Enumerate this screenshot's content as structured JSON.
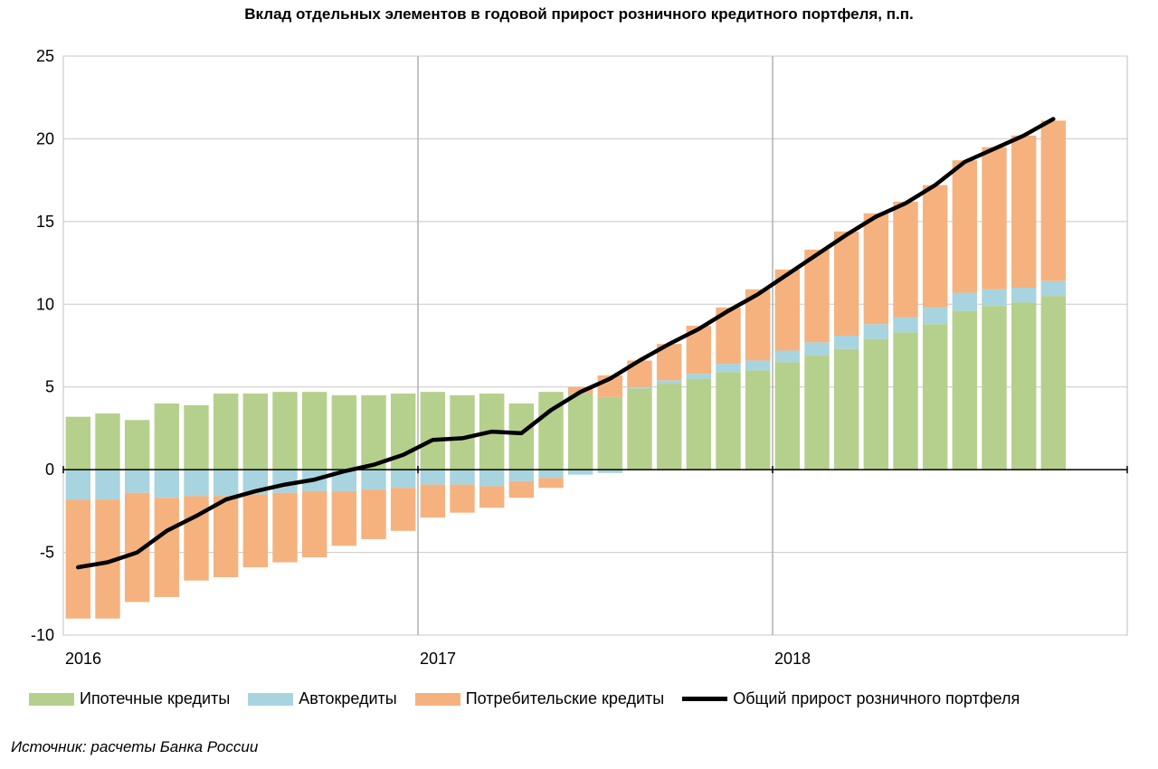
{
  "chart_data": {
    "type": "bar",
    "title": "Вклад отдельных элементов в годовой прирост розничного кредитного портфеля, п.п.",
    "xlabel": "",
    "ylabel": "",
    "ylim": [
      -10,
      25
    ],
    "yticks": [
      25,
      20,
      15,
      10,
      5,
      0,
      -5,
      -10
    ],
    "ytick_labels": [
      "25",
      "20",
      "15",
      "10",
      "5",
      "0",
      "-5",
      "-10"
    ],
    "x_tick_labels": [
      "2016",
      "2017",
      "2018"
    ],
    "grid": true,
    "legend_position": "bottom",
    "categories": [
      "2016-01",
      "2016-02",
      "2016-03",
      "2016-04",
      "2016-05",
      "2016-06",
      "2016-07",
      "2016-08",
      "2016-09",
      "2016-10",
      "2016-11",
      "2016-12",
      "2017-01",
      "2017-02",
      "2017-03",
      "2017-04",
      "2017-05",
      "2017-06",
      "2017-07",
      "2017-08",
      "2017-09",
      "2017-10",
      "2017-11",
      "2017-12",
      "2018-01",
      "2018-02",
      "2018-03",
      "2018-04",
      "2018-05",
      "2018-06",
      "2018-07",
      "2018-08",
      "2018-09",
      "2018-10",
      "2018-11"
    ],
    "series": [
      {
        "name": "Ипотечные кредиты",
        "kind": "bar",
        "color": "#b5d08c",
        "values": [
          3.2,
          3.4,
          3.0,
          4.0,
          3.9,
          4.6,
          4.6,
          4.7,
          4.7,
          4.5,
          4.5,
          4.6,
          4.7,
          4.5,
          4.6,
          4.0,
          4.7,
          4.6,
          4.4,
          4.9,
          5.2,
          5.5,
          5.9,
          6.0,
          6.5,
          6.9,
          7.3,
          7.9,
          8.3,
          8.8,
          9.6,
          9.9,
          10.1,
          10.5,
          0
        ]
      },
      {
        "name": "Автокредиты",
        "kind": "bar",
        "color": "#a8d4e0",
        "values": [
          -1.8,
          -1.8,
          -1.4,
          -1.7,
          -1.6,
          -1.6,
          -1.5,
          -1.4,
          -1.3,
          -1.3,
          -1.2,
          -1.1,
          -0.9,
          -0.9,
          -1.0,
          -0.7,
          -0.5,
          -0.3,
          -0.2,
          0.1,
          0.2,
          0.3,
          0.5,
          0.6,
          0.7,
          0.8,
          0.8,
          0.9,
          0.9,
          1.0,
          1.1,
          1.0,
          0.9,
          0.9,
          0
        ]
      },
      {
        "name": "Потребительские кредиты",
        "kind": "bar",
        "color": "#f5b27f",
        "values": [
          -7.2,
          -7.2,
          -6.6,
          -6.0,
          -5.1,
          -4.9,
          -4.4,
          -4.2,
          -4.0,
          -3.3,
          -3.0,
          -2.6,
          -2.0,
          -1.7,
          -1.3,
          -1.0,
          -0.6,
          0.4,
          1.3,
          1.6,
          2.2,
          2.9,
          3.4,
          4.3,
          4.9,
          5.6,
          6.3,
          6.7,
          7.0,
          7.4,
          8.0,
          8.6,
          9.2,
          9.7,
          0
        ]
      },
      {
        "name": "Общий прирост розничного портфеля",
        "kind": "line",
        "color": "#000000",
        "values": [
          -5.9,
          -5.6,
          -5.0,
          -3.7,
          -2.8,
          -1.8,
          -1.3,
          -0.9,
          -0.6,
          -0.1,
          0.3,
          0.9,
          1.8,
          1.9,
          2.3,
          2.2,
          3.6,
          4.7,
          5.5,
          6.6,
          7.6,
          8.5,
          9.6,
          10.6,
          11.8,
          13.0,
          14.2,
          15.3,
          16.1,
          17.2,
          18.6,
          19.4,
          20.2,
          21.2,
          null
        ]
      }
    ]
  },
  "source_note": "Источник: расчеты Банка России"
}
